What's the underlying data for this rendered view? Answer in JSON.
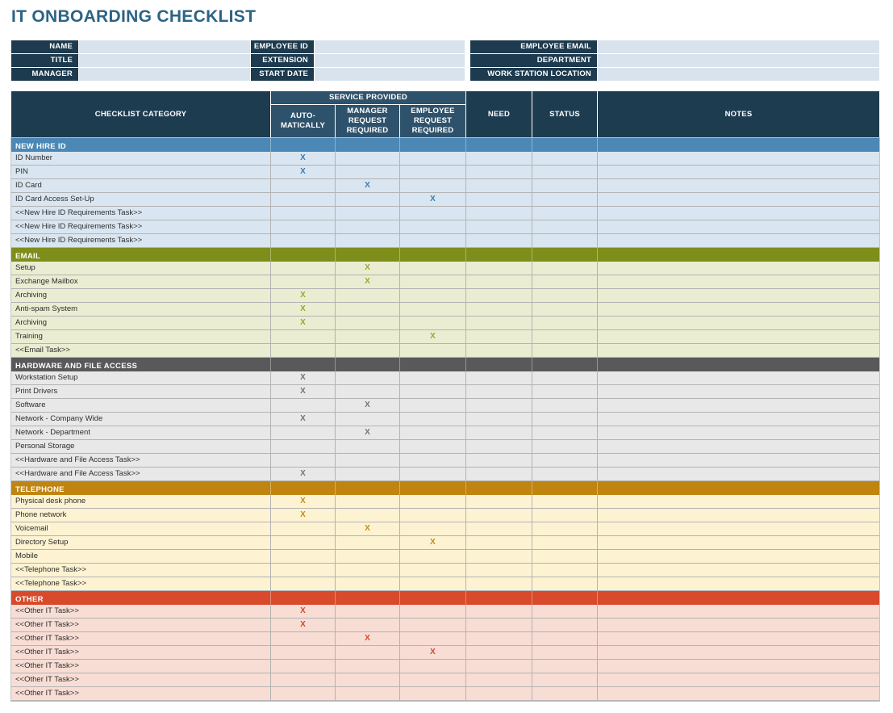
{
  "title": "IT ONBOARDING CHECKLIST",
  "colors": {
    "title_text": "#2c6484",
    "header_dark": "#1e3c50",
    "header_mid": "#2e526b",
    "form_input_bg": "#d9e3ed"
  },
  "form": {
    "rows": [
      {
        "fields": [
          {
            "label": "NAME",
            "value": ""
          },
          {
            "label": "EMPLOYEE ID",
            "value": ""
          },
          {
            "label": "EMPLOYEE EMAIL",
            "value": ""
          }
        ]
      },
      {
        "fields": [
          {
            "label": "TITLE",
            "value": ""
          },
          {
            "label": "EXTENSION",
            "value": ""
          },
          {
            "label": "DEPARTMENT",
            "value": ""
          }
        ]
      },
      {
        "fields": [
          {
            "label": "MANAGER",
            "value": ""
          },
          {
            "label": "START DATE",
            "value": ""
          },
          {
            "label": "WORK STATION LOCATION",
            "value": ""
          }
        ]
      }
    ]
  },
  "table": {
    "header": {
      "category": "CHECKLIST CATEGORY",
      "service_provided": "SERVICE PROVIDED",
      "automatically": "AUTO-MATICALLY",
      "manager_request": "MANAGER REQUEST REQUIRED",
      "employee_request": "EMPLOYEE REQUEST REQUIRED",
      "need": "NEED",
      "status": "STATUS",
      "notes": "NOTES"
    },
    "sections": [
      {
        "name": "NEW HIRE ID",
        "colors": {
          "band": "#4c88b6",
          "row": "#d9e6f1",
          "mark": "#3c7cb0"
        },
        "rows": [
          {
            "label": "ID Number",
            "automatically": "X",
            "manager_request": "",
            "employee_request": "",
            "need": "",
            "status": "",
            "notes": ""
          },
          {
            "label": "PIN",
            "automatically": "X",
            "manager_request": "",
            "employee_request": "",
            "need": "",
            "status": "",
            "notes": ""
          },
          {
            "label": "ID Card",
            "automatically": "",
            "manager_request": "X",
            "employee_request": "",
            "need": "",
            "status": "",
            "notes": ""
          },
          {
            "label": "ID Card Access Set-Up",
            "automatically": "",
            "manager_request": "",
            "employee_request": "X",
            "need": "",
            "status": "",
            "notes": ""
          },
          {
            "label": "<<New Hire ID Requirements Task>>",
            "automatically": "",
            "manager_request": "",
            "employee_request": "",
            "need": "",
            "status": "",
            "notes": ""
          },
          {
            "label": "<<New Hire ID Requirements Task>>",
            "automatically": "",
            "manager_request": "",
            "employee_request": "",
            "need": "",
            "status": "",
            "notes": ""
          },
          {
            "label": "<<New Hire ID Requirements Task>>",
            "automatically": "",
            "manager_request": "",
            "employee_request": "",
            "need": "",
            "status": "",
            "notes": ""
          }
        ]
      },
      {
        "name": "EMAIL",
        "colors": {
          "band": "#7f8e1a",
          "row": "#eaedd1",
          "mark": "#99a82b"
        },
        "rows": [
          {
            "label": "Setup",
            "automatically": "",
            "manager_request": "X",
            "employee_request": "",
            "need": "",
            "status": "",
            "notes": ""
          },
          {
            "label": "Exchange Mailbox",
            "automatically": "",
            "manager_request": "X",
            "employee_request": "",
            "need": "",
            "status": "",
            "notes": ""
          },
          {
            "label": "Archiving",
            "automatically": "X",
            "manager_request": "",
            "employee_request": "",
            "need": "",
            "status": "",
            "notes": ""
          },
          {
            "label": "Anti-spam System",
            "automatically": "X",
            "manager_request": "",
            "employee_request": "",
            "need": "",
            "status": "",
            "notes": ""
          },
          {
            "label": "Archiving",
            "automatically": "X",
            "manager_request": "",
            "employee_request": "",
            "need": "",
            "status": "",
            "notes": ""
          },
          {
            "label": "Training",
            "automatically": "",
            "manager_request": "",
            "employee_request": "X",
            "need": "",
            "status": "",
            "notes": ""
          },
          {
            "label": "<<Email Task>>",
            "automatically": "",
            "manager_request": "",
            "employee_request": "",
            "need": "",
            "status": "",
            "notes": ""
          }
        ]
      },
      {
        "name": "HARDWARE AND FILE ACCESS",
        "colors": {
          "band": "#59595b",
          "row": "#e8e8e8",
          "mark": "#737373"
        },
        "rows": [
          {
            "label": "Workstation Setup",
            "automatically": "X",
            "manager_request": "",
            "employee_request": "",
            "need": "",
            "status": "",
            "notes": ""
          },
          {
            "label": "Print Drivers",
            "automatically": "X",
            "manager_request": "",
            "employee_request": "",
            "need": "",
            "status": "",
            "notes": ""
          },
          {
            "label": "Software",
            "automatically": "",
            "manager_request": "X",
            "employee_request": "",
            "need": "",
            "status": "",
            "notes": ""
          },
          {
            "label": "Network - Company Wide",
            "automatically": "X",
            "manager_request": "",
            "employee_request": "",
            "need": "",
            "status": "",
            "notes": ""
          },
          {
            "label": "Network - Department",
            "automatically": "",
            "manager_request": "X",
            "employee_request": "",
            "need": "",
            "status": "",
            "notes": ""
          },
          {
            "label": "Personal Storage",
            "automatically": "",
            "manager_request": "",
            "employee_request": "",
            "need": "",
            "status": "",
            "notes": ""
          },
          {
            "label": "<<Hardware and File Access Task>>",
            "automatically": "",
            "manager_request": "",
            "employee_request": "",
            "need": "",
            "status": "",
            "notes": ""
          },
          {
            "label": "<<Hardware and File Access Task>>",
            "automatically": "X",
            "manager_request": "",
            "employee_request": "",
            "need": "",
            "status": "",
            "notes": ""
          }
        ]
      },
      {
        "name": "TELEPHONE",
        "colors": {
          "band": "#c08410",
          "row": "#fdf3d2",
          "mark": "#bd8e17"
        },
        "rows": [
          {
            "label": "Physical desk phone",
            "automatically": "X",
            "manager_request": "",
            "employee_request": "",
            "need": "",
            "status": "",
            "notes": ""
          },
          {
            "label": "Phone network",
            "automatically": "X",
            "manager_request": "",
            "employee_request": "",
            "need": "",
            "status": "",
            "notes": ""
          },
          {
            "label": "Voicemail",
            "automatically": "",
            "manager_request": "X",
            "employee_request": "",
            "need": "",
            "status": "",
            "notes": ""
          },
          {
            "label": "Directory Setup",
            "automatically": "",
            "manager_request": "",
            "employee_request": "X",
            "need": "",
            "status": "",
            "notes": ""
          },
          {
            "label": "Mobile",
            "automatically": "",
            "manager_request": "",
            "employee_request": "",
            "need": "",
            "status": "",
            "notes": ""
          },
          {
            "label": "<<Telephone Task>>",
            "automatically": "",
            "manager_request": "",
            "employee_request": "",
            "need": "",
            "status": "",
            "notes": ""
          },
          {
            "label": "<<Telephone Task>>",
            "automatically": "",
            "manager_request": "",
            "employee_request": "",
            "need": "",
            "status": "",
            "notes": ""
          }
        ]
      },
      {
        "name": "OTHER",
        "colors": {
          "band": "#d84a2b",
          "row": "#f8ddd5",
          "mark": "#d04a2d"
        },
        "rows": [
          {
            "label": "<<Other IT Task>>",
            "automatically": "X",
            "manager_request": "",
            "employee_request": "",
            "need": "",
            "status": "",
            "notes": ""
          },
          {
            "label": "<<Other IT Task>>",
            "automatically": "X",
            "manager_request": "",
            "employee_request": "",
            "need": "",
            "status": "",
            "notes": ""
          },
          {
            "label": "<<Other IT Task>>",
            "automatically": "",
            "manager_request": "X",
            "employee_request": "",
            "need": "",
            "status": "",
            "notes": ""
          },
          {
            "label": "<<Other IT Task>>",
            "automatically": "",
            "manager_request": "",
            "employee_request": "X",
            "need": "",
            "status": "",
            "notes": ""
          },
          {
            "label": "<<Other IT Task>>",
            "automatically": "",
            "manager_request": "",
            "employee_request": "",
            "need": "",
            "status": "",
            "notes": ""
          },
          {
            "label": "<<Other IT Task>>",
            "automatically": "",
            "manager_request": "",
            "employee_request": "",
            "need": "",
            "status": "",
            "notes": ""
          },
          {
            "label": "<<Other IT Task>>",
            "automatically": "",
            "manager_request": "",
            "employee_request": "",
            "need": "",
            "status": "",
            "notes": ""
          }
        ]
      }
    ]
  }
}
